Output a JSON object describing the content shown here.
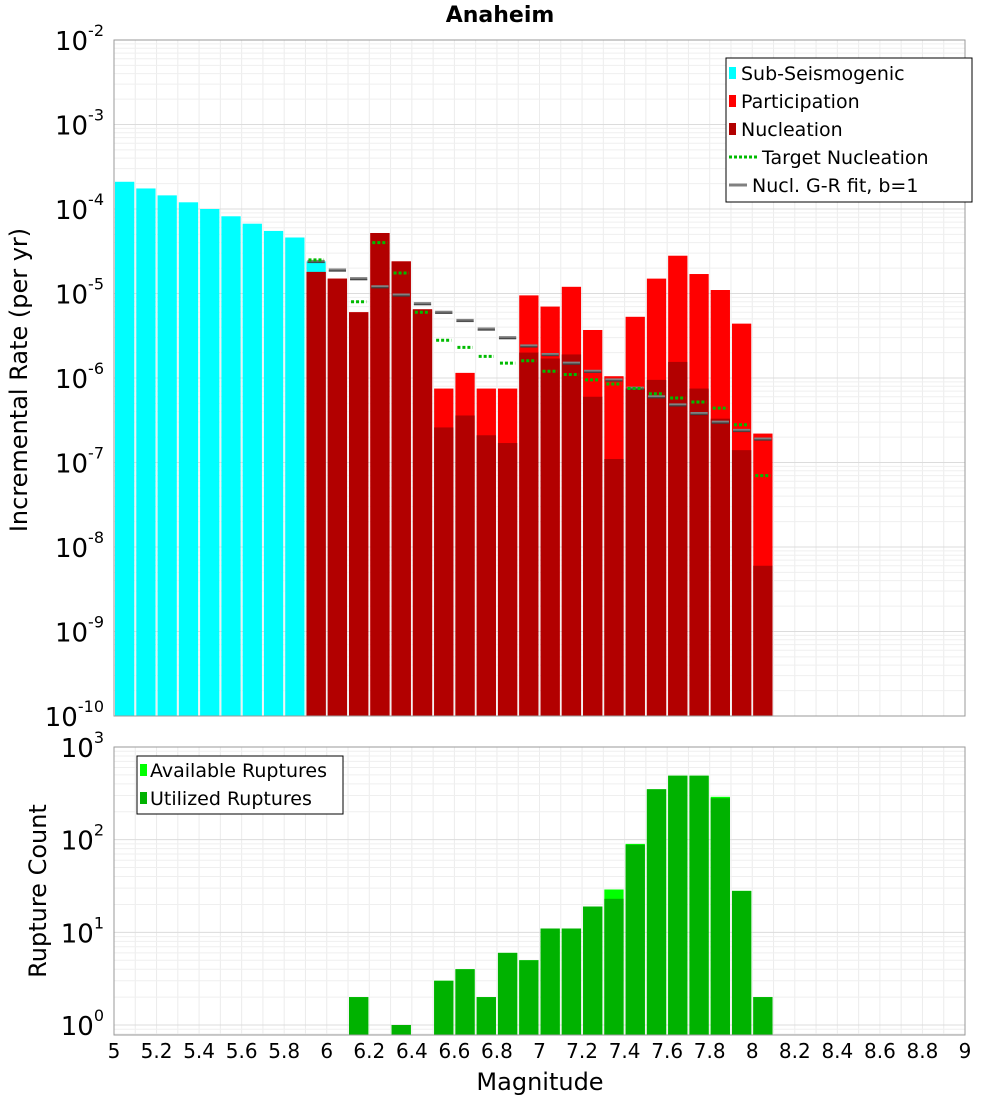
{
  "chart_data": [
    {
      "type": "bar",
      "title": "Anaheim",
      "xlabel": "",
      "ylabel": "Incremental Rate (per yr)",
      "yscale": "log",
      "ylim": [
        1e-10,
        0.01
      ],
      "xlim": [
        5,
        9
      ],
      "grid": true,
      "legend_position": "top-right",
      "y_ticks": [
        {
          "base": "10",
          "exp": "-10"
        },
        {
          "base": "10",
          "exp": "-9"
        },
        {
          "base": "10",
          "exp": "-8"
        },
        {
          "base": "10",
          "exp": "-7"
        },
        {
          "base": "10",
          "exp": "-6"
        },
        {
          "base": "10",
          "exp": "-5"
        },
        {
          "base": "10",
          "exp": "-4"
        },
        {
          "base": "10",
          "exp": "-3"
        },
        {
          "base": "10",
          "exp": "-2"
        }
      ],
      "legend": [
        {
          "label": "Sub-Seismogenic",
          "kind": "bar",
          "color": "#00ffff"
        },
        {
          "label": "Participation",
          "kind": "bar",
          "color": "#ff0000"
        },
        {
          "label": "Nucleation",
          "kind": "bar",
          "color": "#b20000"
        },
        {
          "label": "Target Nucleation",
          "kind": "dotted",
          "color": "#00bb00"
        },
        {
          "label": "Nucl. G-R fit, b=1",
          "kind": "line",
          "color": "#808080"
        }
      ],
      "series": [
        {
          "name": "Sub-Seismogenic",
          "x": [
            5.05,
            5.15,
            5.25,
            5.35,
            5.45,
            5.55,
            5.65,
            5.75,
            5.85,
            5.95,
            6.05
          ],
          "values": [
            0.00021,
            0.000175,
            0.000145,
            0.00012,
            0.0001,
            8.2e-05,
            6.7e-05,
            5.5e-05,
            4.6e-05,
            2.4e-05,
            9.5e-06
          ]
        },
        {
          "name": "Participation",
          "x": [
            5.95,
            6.05,
            6.15,
            6.25,
            6.35,
            6.45,
            6.55,
            6.65,
            6.75,
            6.85,
            6.95,
            7.05,
            7.15,
            7.25,
            7.35,
            7.45,
            7.55,
            7.65,
            7.75,
            7.85,
            7.95,
            8.05
          ],
          "values": [
            1.8e-05,
            1.5e-05,
            6e-06,
            5.2e-05,
            2.4e-05,
            6.5e-06,
            7.5e-07,
            1.15e-06,
            7.5e-07,
            7.5e-07,
            9.5e-06,
            7e-06,
            1.2e-05,
            3.7e-06,
            1.05e-06,
            5.3e-06,
            1.5e-05,
            2.8e-05,
            1.7e-05,
            1.1e-05,
            4.4e-06,
            2.2e-07
          ]
        },
        {
          "name": "Nucleation",
          "x": [
            5.95,
            6.05,
            6.15,
            6.25,
            6.35,
            6.45,
            6.55,
            6.65,
            6.75,
            6.85,
            6.95,
            7.05,
            7.15,
            7.25,
            7.35,
            7.45,
            7.55,
            7.65,
            7.75,
            7.85,
            7.95,
            8.05
          ],
          "values": [
            1.8e-05,
            1.5e-05,
            6e-06,
            5.2e-05,
            2.4e-05,
            6.5e-06,
            2.6e-07,
            3.6e-07,
            2.1e-07,
            1.7e-07,
            2e-06,
            1.7e-06,
            1.9e-06,
            6e-07,
            1.1e-07,
            7.5e-07,
            9.5e-07,
            1.55e-06,
            7.5e-07,
            3.3e-07,
            1.4e-07,
            6e-09
          ]
        },
        {
          "name": "Target Nucleation",
          "x": [
            5.95,
            6.15,
            6.25,
            6.35,
            6.45,
            6.55,
            6.65,
            6.75,
            6.85,
            6.95,
            7.05,
            7.15,
            7.25,
            7.35,
            7.45,
            7.55,
            7.65,
            7.75,
            7.85,
            7.95,
            8.05
          ],
          "values": [
            2.5e-05,
            8e-06,
            4e-05,
            1.75e-05,
            6e-06,
            2.8e-06,
            2.3e-06,
            1.8e-06,
            1.5e-06,
            1.6e-06,
            1.2e-06,
            1.1e-06,
            9.5e-07,
            8.5e-07,
            7.5e-07,
            6.5e-07,
            5.8e-07,
            5.2e-07,
            4.4e-07,
            2.8e-07,
            7e-08
          ]
        },
        {
          "name": "Nucl. G-R fit, b=1",
          "x": [
            5.95,
            6.05,
            6.15,
            6.25,
            6.35,
            6.45,
            6.55,
            6.65,
            6.75,
            6.85,
            6.95,
            7.05,
            7.15,
            7.25,
            7.35,
            7.45,
            7.55,
            7.65,
            7.75,
            7.85,
            7.95,
            8.05
          ],
          "values": [
            2.4e-05,
            1.9e-05,
            1.5e-05,
            1.2e-05,
            9.6e-06,
            7.6e-06,
            6e-06,
            4.8e-06,
            3.8e-06,
            3e-06,
            2.4e-06,
            1.9e-06,
            1.5e-06,
            1.2e-06,
            9.5e-07,
            7.6e-07,
            6e-07,
            4.8e-07,
            3.8e-07,
            3e-07,
            2.4e-07,
            1.9e-07
          ]
        }
      ]
    },
    {
      "type": "bar",
      "title": "",
      "xlabel": "Magnitude",
      "ylabel": "Rupture Count",
      "yscale": "log",
      "ylim": [
        0.78,
        1000
      ],
      "xlim": [
        5,
        9
      ],
      "grid": true,
      "legend_position": "top-left",
      "x_tick_labels": [
        "5",
        "5.2",
        "5.4",
        "5.6",
        "5.8",
        "6",
        "6.2",
        "6.4",
        "6.6",
        "6.8",
        "7",
        "7.2",
        "7.4",
        "7.6",
        "7.8",
        "8",
        "8.2",
        "8.4",
        "8.6",
        "8.8",
        "9"
      ],
      "y_ticks": [
        {
          "base": "10",
          "exp": "0"
        },
        {
          "base": "10",
          "exp": "1"
        },
        {
          "base": "10",
          "exp": "2"
        },
        {
          "base": "10",
          "exp": "3"
        }
      ],
      "legend": [
        {
          "label": "Available Ruptures",
          "kind": "bar",
          "color": "#00ff00"
        },
        {
          "label": "Utilized Ruptures",
          "kind": "bar",
          "color": "#00b200"
        }
      ],
      "series": [
        {
          "name": "Available Ruptures",
          "x": [
            6.15,
            6.35,
            6.55,
            6.65,
            6.75,
            6.85,
            6.95,
            7.05,
            7.15,
            7.25,
            7.35,
            7.45,
            7.55,
            7.65,
            7.75,
            7.85,
            7.95,
            8.05
          ],
          "values": [
            2,
            1,
            3,
            4,
            2,
            6,
            5,
            11,
            11,
            19,
            29,
            90,
            350,
            490,
            490,
            290,
            28,
            2
          ]
        },
        {
          "name": "Utilized Ruptures",
          "x": [
            6.15,
            6.35,
            6.55,
            6.65,
            6.75,
            6.85,
            6.95,
            7.05,
            7.15,
            7.25,
            7.35,
            7.45,
            7.55,
            7.65,
            7.75,
            7.85,
            7.95,
            8.05
          ],
          "values": [
            2,
            1,
            3,
            4,
            2,
            6,
            5,
            11,
            11,
            19,
            23,
            88,
            350,
            490,
            490,
            280,
            28,
            2
          ]
        }
      ]
    }
  ]
}
